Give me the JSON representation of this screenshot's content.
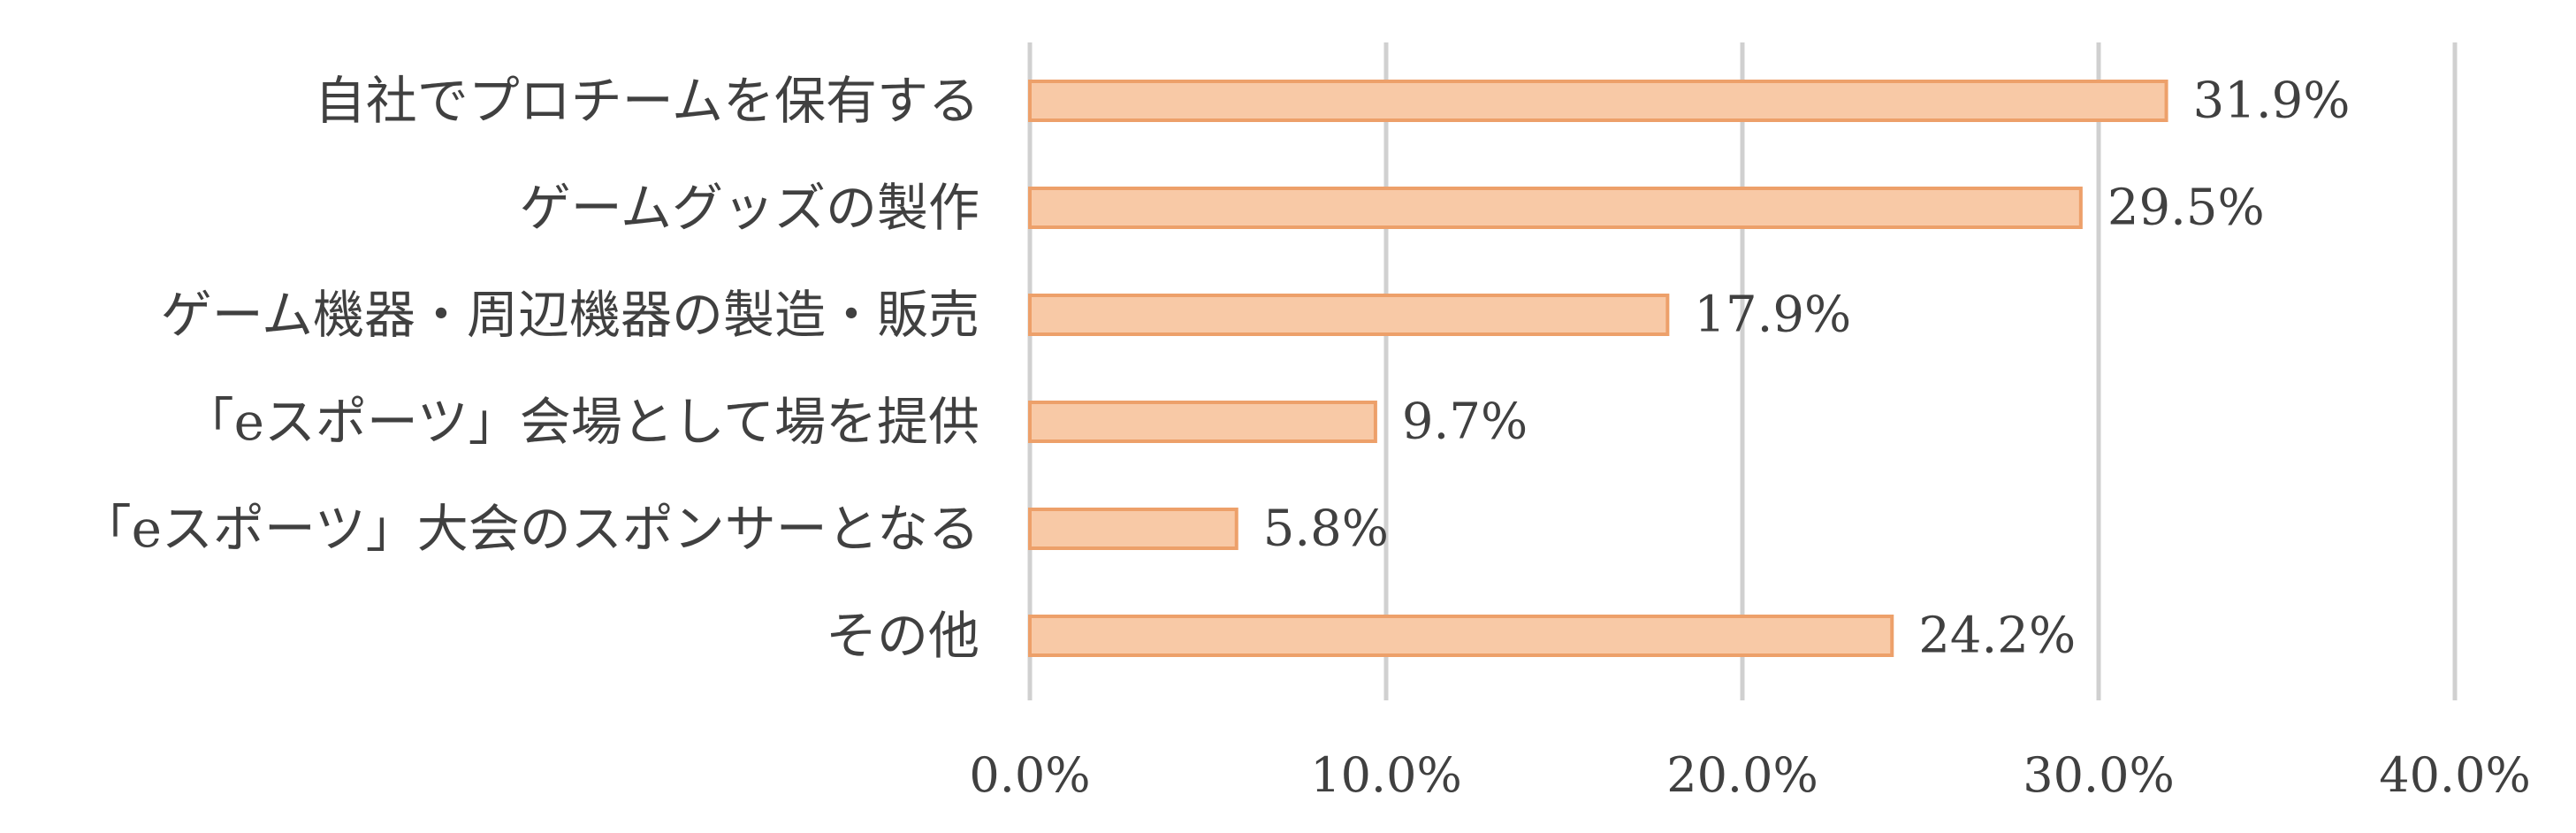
{
  "chart_data": {
    "type": "bar",
    "orientation": "horizontal",
    "categories": [
      "自社でプロチームを保有する",
      "ゲームグッズの製作",
      "ゲーム機器・周辺機器の製造・販売",
      "「eスポーツ」会場として場を提供",
      "「eスポーツ」大会のスポンサーとなる",
      "その他"
    ],
    "values": [
      31.9,
      29.5,
      17.9,
      9.7,
      5.8,
      24.2
    ],
    "value_labels": [
      "31.9%",
      "29.5%",
      "17.9%",
      "9.7%",
      "5.8%",
      "24.2%"
    ],
    "xlim": [
      0,
      40
    ],
    "x_ticks": [
      0,
      10,
      20,
      30,
      40
    ],
    "x_tick_labels": [
      "0.0%",
      "10.0%",
      "20.0%",
      "30.0%",
      "40.0%"
    ],
    "title": "",
    "xlabel": "",
    "ylabel": "",
    "grid": "vertical",
    "legend": "none",
    "colors": {
      "bar_fill": "#F8C9A6",
      "bar_stroke": "#EDA06A",
      "grid": "#D0D0D0",
      "text": "#404040"
    }
  }
}
